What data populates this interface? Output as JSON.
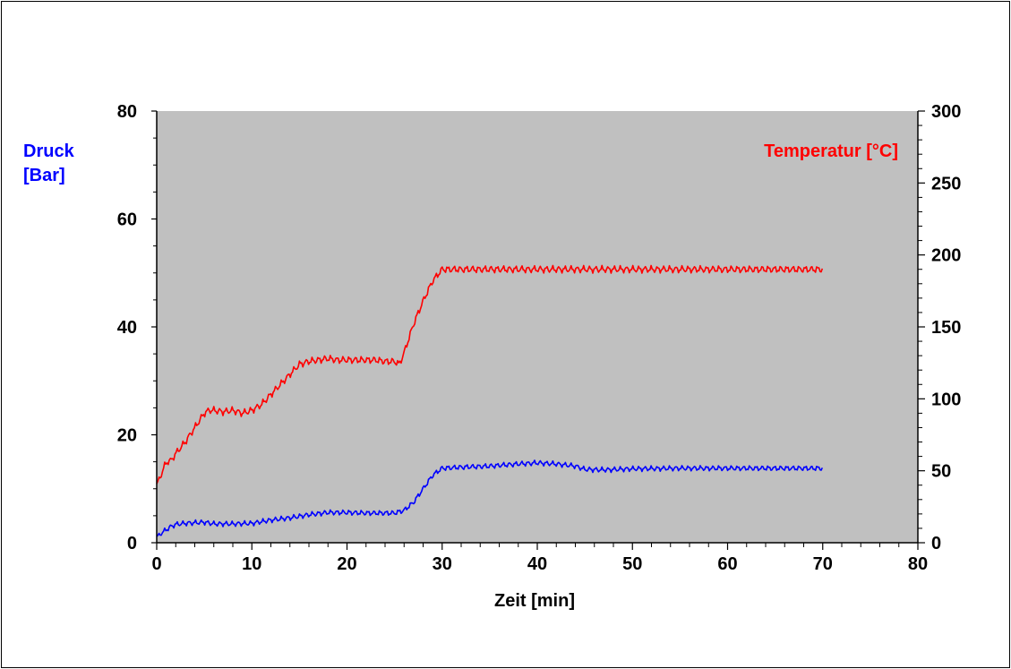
{
  "chart_data": {
    "type": "line",
    "xlabel": "Zeit [min]",
    "ylabel_left": [
      "Druck",
      "[Bar]"
    ],
    "ylabel_right": "Temperatur [°C]",
    "xlim": [
      0,
      80
    ],
    "ylim_left": [
      0,
      80
    ],
    "ylim_right": [
      0,
      300
    ],
    "x_ticks": [
      "0",
      "10",
      "20",
      "30",
      "40",
      "50",
      "60",
      "70",
      "80"
    ],
    "y_left_ticks": [
      "0",
      "20",
      "40",
      "60",
      "80"
    ],
    "y_right_ticks": [
      "0",
      "50",
      "100",
      "150",
      "200",
      "250",
      "300"
    ],
    "grid": false,
    "plot_background": "#c0c0c0",
    "colors": {
      "druck": "#0000ff",
      "temperatur": "#ff0000"
    },
    "series": [
      {
        "name": "Temperatur [°C]",
        "axis": "right",
        "x": [
          0,
          0.5,
          1,
          1.5,
          2,
          3,
          4,
          5,
          5.5,
          6,
          7,
          8,
          9,
          10,
          11,
          12,
          13,
          14,
          15,
          16,
          17,
          18,
          19,
          20,
          21,
          22,
          23,
          24,
          25,
          25.5,
          26,
          27,
          28,
          29,
          30,
          32,
          35,
          40,
          45,
          50,
          55,
          60,
          65,
          70
        ],
        "y": [
          40,
          48,
          56,
          57,
          62,
          70,
          80,
          90,
          92,
          92,
          91,
          92,
          90,
          92,
          96,
          103,
          110,
          117,
          124,
          126,
          127,
          128,
          127,
          127,
          127,
          127,
          127,
          126,
          126,
          124,
          132,
          152,
          168,
          182,
          190,
          190,
          190,
          190,
          190,
          190,
          190,
          190,
          190,
          190
        ]
      },
      {
        "name": "Druck",
        "axis": "left",
        "x": [
          0,
          0.5,
          1,
          1.5,
          2,
          3,
          4,
          5,
          6,
          8,
          10,
          12,
          14,
          16,
          18,
          20,
          22,
          24,
          25,
          26,
          27,
          28,
          29,
          30,
          32,
          35,
          38,
          40,
          42,
          44,
          45,
          47,
          50,
          55,
          60,
          65,
          70
        ],
        "y": [
          1,
          1.8,
          2.4,
          3,
          3.4,
          3.6,
          3.7,
          3.8,
          3.5,
          3.5,
          3.6,
          4.2,
          4.6,
          5.2,
          5.6,
          5.6,
          5.5,
          5.5,
          5.5,
          6,
          7.5,
          10,
          12.5,
          13.8,
          14,
          14.2,
          14.6,
          14.8,
          14.6,
          14.2,
          13.6,
          13.5,
          13.7,
          13.8,
          13.8,
          13.8,
          13.8
        ]
      }
    ]
  }
}
